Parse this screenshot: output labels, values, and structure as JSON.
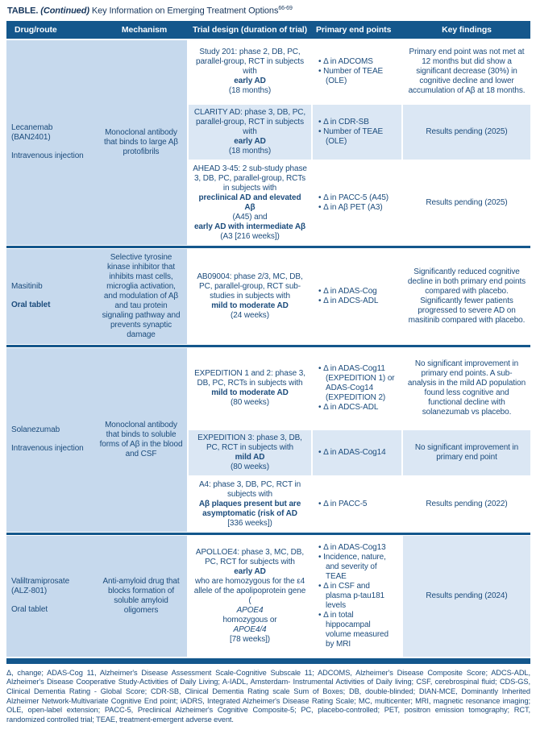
{
  "title": {
    "label": "TABLE.",
    "continued": "(Continued)",
    "text": " Key Information on Emerging Treatment Options",
    "citation": "66-69"
  },
  "columns": {
    "drug_route": "Drug/route",
    "mechanism": "Mechanism",
    "trial_design": "Trial design (duration of trial)",
    "endpoints": "Primary end points",
    "findings": "Key findings"
  },
  "groups": [
    {
      "drug": "Lecanemab\n(BAN2401)",
      "route": "Intravenous injection",
      "mechanism": "Monoclonal antibody that binds to large Aβ protofibrils",
      "rows": [
        {
          "trial": "Study 201: phase 2, DB, PC, parallel-group, RCT in subjects with **early AD** (18 months)",
          "endpoints": [
            "Δ in ADCOMS",
            "Number of TEAE (OLE)"
          ],
          "findings": "Primary end point was not met at 12 months but did show a significant decrease (30%) in cognitive decline and lower accumulation of Aβ at 18 months."
        },
        {
          "trial": "CLARITY AD: phase 3, DB, PC, parallel-group, RCT in subjects with **early AD** (18 months)",
          "endpoints": [
            "Δ in CDR-SB",
            "Number of TEAE (OLE)"
          ],
          "findings": "Results pending (2025)"
        },
        {
          "trial": "AHEAD 3-45: 2 sub-study phase 3, DB, PC, parallel-group, RCTs in subjects with **preclinical AD and elevated Aβ** (A45) and **early AD with intermediate Aβ** (A3 [216 weeks])",
          "endpoints": [
            "Δ in PACC-5 (A45)",
            "Δ in Aβ PET (A3)"
          ],
          "findings": "Results pending (2025)"
        }
      ]
    },
    {
      "drug": "Masitinib",
      "route": "**Oral tablet**",
      "mechanism": "Selective tyrosine kinase inhibitor that inhibits mast cells, microglia activation, and modulation of Aβ and tau protein signaling pathway and prevents synaptic damage",
      "rows": [
        {
          "trial": "AB09004: phase 2/3, MC, DB, PC, parallel-group, RCT sub-studies in subjects with **mild to moderate AD** (24 weeks)",
          "endpoints": [
            "Δ in ADAS-Cog",
            "Δ in ADCS-ADL"
          ],
          "findings": "Significantly reduced cognitive decline in both primary end points compared with placebo. Significantly fewer patients progressed to severe AD on masitinib compared with placebo."
        }
      ]
    },
    {
      "drug": "Solanezumab",
      "route": "Intravenous injection",
      "mechanism": "Monoclonal antibody that binds to soluble forms of Aβ in the blood and CSF",
      "rows": [
        {
          "trial": "EXPEDITION 1 and 2: phase 3, DB, PC, RCTs in subjects with **mild to moderate AD** (80 weeks)",
          "endpoints": [
            "Δ in ADAS-Cog11 (EXPEDITION 1) or ADAS-Cog14 (EXPEDITION 2)",
            "Δ in ADCS-ADL"
          ],
          "findings": "No significant improvement in primary end points. A sub-analysis in the mild AD population found less cognitive and functional decline with solanezumab vs placebo."
        },
        {
          "trial": "EXPEDITION 3: phase 3, DB, PC, RCT in subjects with **mild AD** (80 weeks)",
          "endpoints": [
            "Δ in ADAS-Cog14"
          ],
          "findings": "No significant improvement in primary end point"
        },
        {
          "trial": "A4: phase 3, DB, PC, RCT in subjects with **Aβ plaques present but are asymptomatic (risk of AD** [336 weeks])",
          "endpoints": [
            "Δ in PACC-5"
          ],
          "findings": "Results pending (2022)"
        }
      ]
    },
    {
      "drug": "Valiltramiprosate\n(ALZ-801)",
      "route": "Oral tablet",
      "mechanism": "Anti-amyloid drug that blocks formation of soluble amyloid oligomers",
      "rows": [
        {
          "trial": "APOLLOE4: phase 3, MC, DB, PC, RCT for subjects with **early AD** who are homozygous for the ε4 allele of the apolipoprotein gene (*APOE4* homozygous or *APOE4/4* [78 weeks])",
          "endpoints": [
            "Δ in ADAS-Cog13",
            "Incidence, nature, and severity of TEAE",
            "Δ in CSF and plasma p-tau181 levels",
            "Δ in total hippocampal volume measured by MRI"
          ],
          "findings": "Results pending (2024)"
        }
      ]
    }
  ],
  "footnote": "Δ, change; ADAS-Cog 11, Alzheimer's Disease Assessment Scale-Cognitive Subscale 11; ADCOMS, Alzheimer's Disease Composite Score; ADCS-ADL, Alzheimer's Disease Cooperative Study-Activities of Daily Living; A-IADL, Amsterdam- Instrumental Activities of Daily living; CSF, cerebrospinal fluid; CDS-GS, Clinical Dementia Rating - Global Score; CDR-SB, Clinical Dementia Rating scale Sum of Boxes; DB, double-blinded; DIAN-MCE, Dominantly Inherited Alzheimer Network-Multivariate Cognitive End point; iADRS, Integrated Alzheimer's Disease Rating Scale; MC, multicenter; MRI, magnetic resonance imaging; OLE, open-label extension; PACC-5, Preclinical Alzheimer's Cognitive Composite-5; PC, placebo-controlled; PET, positron emission tomography; RCT, randomized controlled trial; TEAE, treatment-emergent adverse event.",
  "colors": {
    "header_blue": "#14578c",
    "row_blue_mid": "#c6d9ed",
    "row_blue_light": "#dbe7f4",
    "text_navy": "#1c4c7c"
  }
}
